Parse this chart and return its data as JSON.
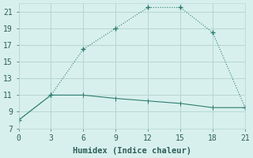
{
  "line1_x": [
    0,
    3,
    6,
    9,
    12,
    15,
    18,
    21
  ],
  "line1_y": [
    8.0,
    11.0,
    16.5,
    19.0,
    21.5,
    21.5,
    18.5,
    9.5
  ],
  "line2_x": [
    0,
    3,
    6,
    9,
    12,
    15,
    18,
    21
  ],
  "line2_y": [
    8.0,
    11.0,
    11.0,
    10.6,
    10.3,
    10.0,
    9.5,
    9.5
  ],
  "line_color": "#2e7d6e",
  "bg_color": "#d8f0ed",
  "grid_color": "#b8d8d4",
  "xlabel": "Humidex (Indice chaleur)",
  "xlim": [
    0,
    21
  ],
  "ylim": [
    7,
    22
  ],
  "xticks": [
    0,
    3,
    6,
    9,
    12,
    15,
    18,
    21
  ],
  "yticks": [
    7,
    9,
    11,
    13,
    15,
    17,
    19,
    21
  ],
  "font_color": "#2e5f58",
  "tick_fontsize": 7,
  "xlabel_fontsize": 7.5
}
